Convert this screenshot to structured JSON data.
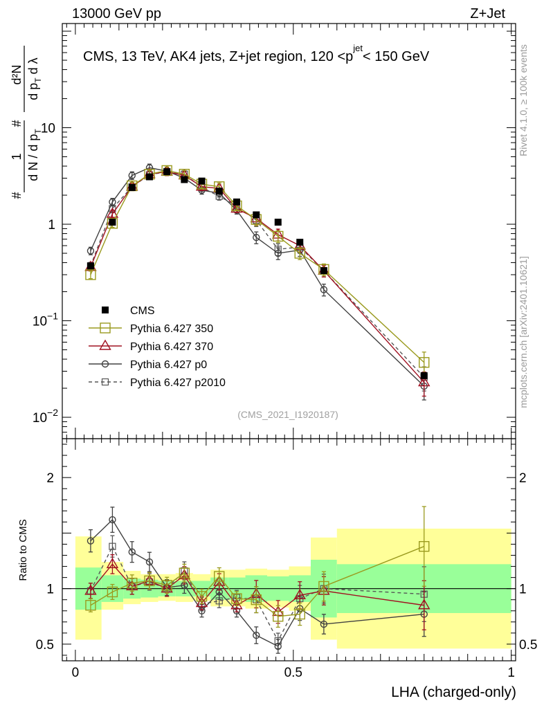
{
  "header": {
    "left": "13000 GeV pp",
    "right": "Z+Jet"
  },
  "side_text": {
    "rivet": "Rivet 4.1.0, ≥ 100k events",
    "mcplots": "mcplots.cern.ch [arXiv:2401.10621]"
  },
  "colors": {
    "cms": "#000000",
    "p350": "#9a9a1e",
    "p370": "#a01020",
    "p0": "#404040",
    "p2010": "#555555",
    "band_outer": "#ffff99",
    "band_inner": "#99ff99"
  },
  "chart_data": [
    {
      "type": "line",
      "name": "main",
      "title": "CMS, 13 TeV, AK4 jets, Z+jet region, 120 <p_T^{jet}< 150 GeV",
      "ylabel": "1/(dN/dpT) d²N/(dpT dλ)",
      "yscale": "log",
      "xlim": [
        -0.03,
        1.01
      ],
      "ylim": [
        0.006,
        120
      ],
      "y_tick_labels": [
        {
          "value": 0.01,
          "base": "10",
          "exp": "−2"
        },
        {
          "value": 0.1,
          "base": "10",
          "exp": "−1"
        },
        {
          "value": 1,
          "base": "1",
          "exp": ""
        },
        {
          "value": 10,
          "base": "10",
          "exp": ""
        }
      ],
      "watermark": "(CMS_2021_I1920187)",
      "x": [
        0.035,
        0.085,
        0.13,
        0.17,
        0.21,
        0.25,
        0.29,
        0.33,
        0.37,
        0.415,
        0.465,
        0.515,
        0.57,
        0.8
      ],
      "series": [
        {
          "name": "CMS",
          "key": "cms",
          "values": [
            0.37,
            1.05,
            2.4,
            3.1,
            3.5,
            2.9,
            2.8,
            2.2,
            1.7,
            1.25,
            1.05,
            0.65,
            0.33,
            0.027
          ]
        },
        {
          "name": "Pythia 6.427 350",
          "key": "p350",
          "values": [
            0.3,
            1.02,
            2.5,
            3.3,
            3.6,
            3.3,
            2.6,
            2.45,
            1.55,
            1.12,
            0.75,
            0.5,
            0.34,
            0.037
          ]
        },
        {
          "name": "Pythia 6.427 370",
          "key": "p370",
          "values": [
            0.36,
            1.28,
            2.45,
            3.3,
            3.5,
            3.2,
            2.45,
            2.35,
            1.45,
            1.15,
            0.78,
            0.6,
            0.33,
            0.023
          ]
        },
        {
          "name": "Pythia 6.427 p0",
          "key": "p0",
          "values": [
            0.53,
            1.7,
            3.2,
            3.85,
            3.55,
            3.0,
            2.25,
            2.1,
            1.4,
            0.73,
            0.5,
            0.54,
            0.21,
            0.021
          ]
        },
        {
          "name": "Pythia 6.427 p2010",
          "key": "p2010",
          "values": [
            0.37,
            1.45,
            2.45,
            3.25,
            3.5,
            3.3,
            2.4,
            1.95,
            1.55,
            1.1,
            0.55,
            0.58,
            0.33,
            0.026
          ]
        }
      ]
    },
    {
      "type": "line",
      "name": "ratio",
      "ylabel": "Ratio to CMS",
      "xlabel": "LHA (charged-only)",
      "xlim": [
        -0.03,
        1.01
      ],
      "ylim": [
        0.35,
        2.35
      ],
      "y_ticks": [
        0.5,
        1,
        2
      ],
      "y_tick_labels": [
        "0.5",
        "1",
        "2"
      ],
      "x_ticks": [
        0,
        0.5,
        1
      ],
      "x_tick_labels": [
        "0",
        "0.5",
        "1"
      ],
      "bands": {
        "edges": [
          0,
          0.06,
          0.11,
          0.15,
          0.19,
          0.23,
          0.27,
          0.31,
          0.35,
          0.39,
          0.44,
          0.49,
          0.54,
          0.6,
          1.0
        ],
        "outer_low": [
          0.54,
          0.81,
          0.86,
          0.88,
          0.89,
          0.88,
          0.89,
          0.84,
          0.84,
          0.82,
          0.83,
          0.8,
          0.54,
          0.46
        ],
        "outer_high": [
          1.47,
          1.24,
          1.16,
          1.13,
          1.13,
          1.14,
          1.13,
          1.17,
          1.17,
          1.18,
          1.17,
          1.2,
          1.46,
          1.54
        ],
        "inner_low": [
          0.81,
          0.88,
          0.91,
          0.92,
          0.93,
          0.93,
          0.93,
          0.9,
          0.9,
          0.88,
          0.89,
          0.88,
          0.74,
          0.78
        ],
        "inner_high": [
          1.19,
          1.12,
          1.09,
          1.08,
          1.07,
          1.07,
          1.07,
          1.1,
          1.1,
          1.12,
          1.11,
          1.12,
          1.26,
          1.22
        ]
      },
      "series": [
        {
          "name": "Pythia 6.427 350",
          "key": "p350",
          "values": [
            0.85,
            0.97,
            1.05,
            1.07,
            1.03,
            1.14,
            0.93,
            1.11,
            0.91,
            0.9,
            0.75,
            0.77,
            1.02,
            1.38
          ]
        },
        {
          "name": "Pythia 6.427 370",
          "key": "p370",
          "values": [
            0.98,
            1.22,
            1.02,
            1.07,
            1.0,
            1.12,
            0.87,
            1.06,
            0.85,
            0.95,
            0.79,
            0.94,
            0.98,
            0.85
          ]
        },
        {
          "name": "Pythia 6.427 p0",
          "key": "p0",
          "values": [
            1.43,
            1.62,
            1.33,
            1.24,
            1.01,
            1.03,
            0.8,
            0.97,
            0.8,
            0.58,
            0.48,
            0.82,
            0.68,
            0.77
          ]
        },
        {
          "name": "Pythia 6.427 p2010",
          "key": "p2010",
          "values": [
            0.98,
            1.38,
            1.02,
            1.06,
            1.0,
            1.16,
            0.86,
            0.89,
            0.92,
            0.9,
            0.53,
            0.91,
            1.0,
            0.95
          ]
        }
      ]
    }
  ]
}
